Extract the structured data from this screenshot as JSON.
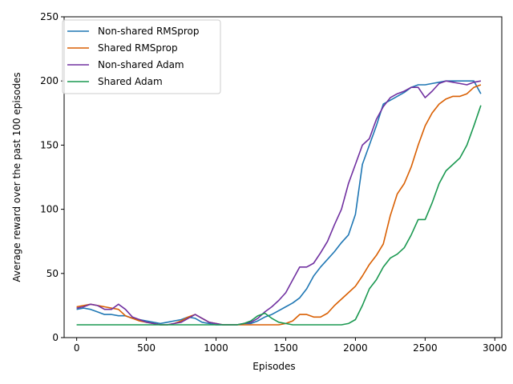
{
  "chart_data": {
    "type": "line",
    "title": "",
    "xlabel": "Episodes",
    "ylabel": "Average reward over the past 100 episodes",
    "xlim": [
      -90,
      3050
    ],
    "ylim": [
      0,
      250
    ],
    "xticks": [
      0,
      500,
      1000,
      1500,
      2000,
      2500,
      3000
    ],
    "yticks": [
      0,
      50,
      100,
      150,
      200,
      250
    ],
    "grid": false,
    "legend_position": "top-left",
    "series": [
      {
        "name": "Non-shared RMSprop",
        "color": "#1f77b4",
        "x": [
          0,
          50,
          100,
          150,
          200,
          250,
          300,
          350,
          400,
          450,
          500,
          550,
          600,
          650,
          700,
          750,
          800,
          850,
          900,
          950,
          1000,
          1050,
          1100,
          1150,
          1200,
          1250,
          1300,
          1350,
          1400,
          1450,
          1500,
          1550,
          1600,
          1650,
          1700,
          1750,
          1800,
          1850,
          1900,
          1950,
          2000,
          2050,
          2100,
          2150,
          2200,
          2250,
          2300,
          2350,
          2400,
          2450,
          2500,
          2550,
          2600,
          2650,
          2700,
          2750,
          2800,
          2850,
          2900
        ],
        "y": [
          22,
          23,
          22,
          20,
          18,
          18,
          17,
          17,
          15,
          14,
          13,
          12,
          11,
          12,
          13,
          14,
          16,
          15,
          12,
          11,
          10,
          10,
          10,
          10,
          11,
          11,
          13,
          16,
          18,
          21,
          24,
          27,
          31,
          38,
          48,
          55,
          61,
          67,
          74,
          80,
          96,
          135,
          150,
          165,
          182,
          185,
          188,
          191,
          195,
          197,
          197,
          198,
          199,
          200,
          200,
          200,
          200,
          200,
          190
        ]
      },
      {
        "name": "Shared RMSprop",
        "color": "#d95f02",
        "x": [
          0,
          50,
          100,
          150,
          200,
          250,
          300,
          350,
          400,
          450,
          500,
          550,
          600,
          650,
          700,
          750,
          800,
          850,
          900,
          950,
          1000,
          1050,
          1100,
          1150,
          1200,
          1250,
          1300,
          1350,
          1400,
          1450,
          1500,
          1550,
          1600,
          1650,
          1700,
          1750,
          1800,
          1850,
          1900,
          1950,
          2000,
          2050,
          2100,
          2150,
          2200,
          2250,
          2300,
          2350,
          2400,
          2450,
          2500,
          2550,
          2600,
          2650,
          2700,
          2750,
          2800,
          2850,
          2900
        ],
        "y": [
          24,
          25,
          26,
          25,
          24,
          23,
          22,
          17,
          15,
          13,
          12,
          11,
          10,
          10,
          11,
          13,
          16,
          18,
          15,
          12,
          11,
          10,
          10,
          10,
          10,
          10,
          10,
          10,
          10,
          10,
          11,
          13,
          18,
          18,
          16,
          16,
          19,
          25,
          30,
          35,
          40,
          48,
          57,
          64,
          73,
          95,
          112,
          120,
          133,
          150,
          165,
          175,
          182,
          186,
          188,
          188,
          190,
          195,
          197
        ]
      },
      {
        "name": "Non-shared Adam",
        "color": "#7030a0",
        "x": [
          0,
          50,
          100,
          150,
          200,
          250,
          300,
          350,
          400,
          450,
          500,
          550,
          600,
          650,
          700,
          750,
          800,
          850,
          900,
          950,
          1000,
          1050,
          1100,
          1150,
          1200,
          1250,
          1300,
          1350,
          1400,
          1450,
          1500,
          1550,
          1600,
          1650,
          1700,
          1750,
          1800,
          1850,
          1900,
          1950,
          2000,
          2050,
          2100,
          2150,
          2200,
          2250,
          2300,
          2350,
          2400,
          2450,
          2500,
          2550,
          2600,
          2650,
          2700,
          2750,
          2800,
          2850,
          2900
        ],
        "y": [
          23,
          24,
          26,
          25,
          22,
          22,
          26,
          22,
          16,
          14,
          12,
          11,
          10,
          10,
          11,
          12,
          15,
          18,
          15,
          12,
          11,
          10,
          10,
          10,
          11,
          12,
          15,
          20,
          24,
          29,
          35,
          45,
          55,
          55,
          58,
          66,
          75,
          88,
          100,
          120,
          135,
          150,
          155,
          170,
          180,
          187,
          190,
          192,
          195,
          195,
          187,
          192,
          198,
          200,
          199,
          198,
          197,
          199,
          200
        ]
      },
      {
        "name": "Shared Adam",
        "color": "#1a9850",
        "x": [
          0,
          50,
          100,
          150,
          200,
          250,
          300,
          350,
          400,
          450,
          500,
          550,
          600,
          650,
          700,
          750,
          800,
          850,
          900,
          950,
          1000,
          1050,
          1100,
          1150,
          1200,
          1250,
          1300,
          1350,
          1400,
          1450,
          1500,
          1550,
          1600,
          1650,
          1700,
          1750,
          1800,
          1850,
          1900,
          1950,
          2000,
          2050,
          2100,
          2150,
          2200,
          2250,
          2300,
          2350,
          2400,
          2450,
          2500,
          2550,
          2600,
          2650,
          2700,
          2750,
          2800,
          2850,
          2900
        ],
        "y": [
          10,
          10,
          10,
          10,
          10,
          10,
          10,
          10,
          10,
          10,
          10,
          10,
          10,
          10,
          10,
          10,
          10,
          10,
          10,
          10,
          10,
          10,
          10,
          10,
          11,
          13,
          17,
          19,
          15,
          12,
          11,
          10,
          10,
          10,
          10,
          10,
          10,
          10,
          10,
          11,
          14,
          25,
          38,
          45,
          55,
          62,
          65,
          70,
          80,
          92,
          92,
          105,
          120,
          130,
          135,
          140,
          150,
          165,
          181
        ]
      }
    ]
  }
}
